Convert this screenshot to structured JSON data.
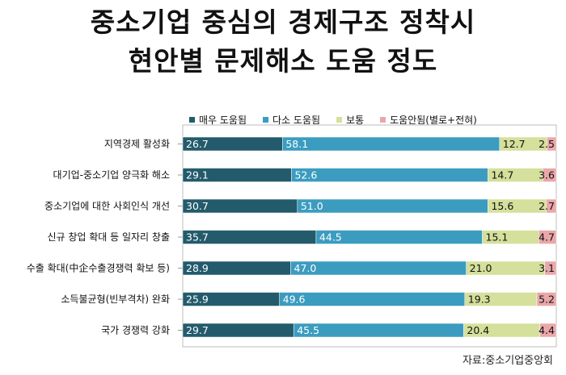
{
  "title_line1": "중소기업 중심의 경제구조 정착시",
  "title_line2": "현안별 문제해소 도움 정도",
  "source": "자료:중소기업중앙회",
  "colors": {
    "very_helpful": "#235b6c",
    "somewhat_helpful": "#3b9cbf",
    "neutral": "#d4e09b",
    "not_helpful": "#eaa7a9"
  },
  "chart_data": {
    "type": "bar",
    "orientation": "horizontal",
    "stacked": true,
    "categories": [
      "지역경제 활성화",
      "대기업-중소기업 양극화 해소",
      "중소기업에 대한 사회인식 개선",
      "신규 창업 확대 등 일자리 창출",
      "수출 확대(中企수출경쟁력 확보 등)",
      "소득불균형(빈부격차) 완화",
      "국가 경쟁력 강화"
    ],
    "series": [
      {
        "name": "매우 도움됨",
        "values": [
          26.7,
          29.1,
          30.7,
          35.7,
          28.9,
          25.9,
          29.7
        ]
      },
      {
        "name": "다소 도움됨",
        "values": [
          58.1,
          52.6,
          51.0,
          44.5,
          47.0,
          49.6,
          45.5
        ]
      },
      {
        "name": "보통",
        "values": [
          12.7,
          14.7,
          15.6,
          15.1,
          21.0,
          19.3,
          20.4
        ]
      },
      {
        "name": "도움안됨(별로+전혀)",
        "values": [
          2.5,
          3.6,
          2.7,
          4.7,
          3.1,
          5.2,
          4.4
        ]
      }
    ],
    "xlim": [
      0,
      100
    ],
    "legend_position": "top"
  }
}
